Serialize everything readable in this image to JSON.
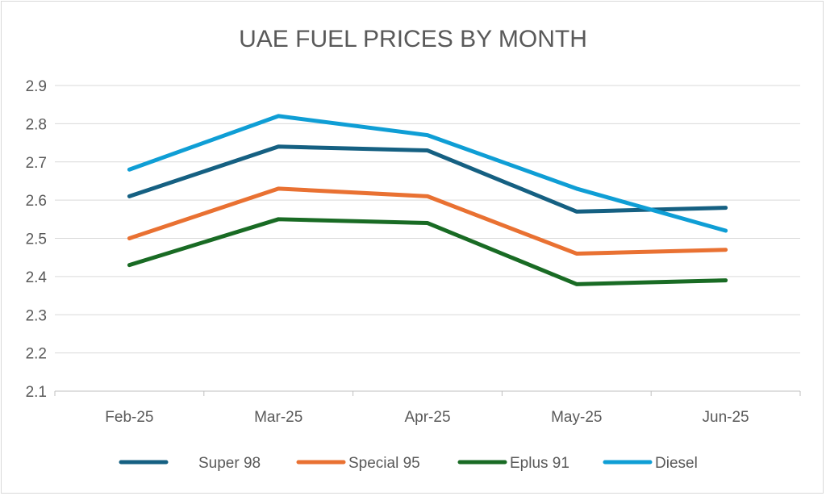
{
  "chart_data": {
    "type": "line",
    "title": "UAE FUEL PRICES BY MONTH",
    "xlabel": "",
    "ylabel": "",
    "categories": [
      "Feb-25",
      "Mar-25",
      "Apr-25",
      "May-25",
      "Jun-25"
    ],
    "ylim": [
      2.1,
      2.9
    ],
    "yticks": [
      "2.1",
      "2.2",
      "2.3",
      "2.4",
      "2.5",
      "2.6",
      "2.7",
      "2.8",
      "2.9"
    ],
    "grid": true,
    "legend": "bottom",
    "series": [
      {
        "name": "Super 98",
        "color": "#156082",
        "values": [
          2.61,
          2.74,
          2.73,
          2.57,
          2.58
        ]
      },
      {
        "name": "Special 95",
        "color": "#E97132",
        "values": [
          2.5,
          2.63,
          2.61,
          2.46,
          2.47
        ]
      },
      {
        "name": "Eplus 91",
        "color": "#196B24",
        "values": [
          2.43,
          2.55,
          2.54,
          2.38,
          2.39
        ]
      },
      {
        "name": "Diesel",
        "color": "#0F9ED5",
        "values": [
          2.68,
          2.82,
          2.77,
          2.63,
          2.52
        ]
      }
    ]
  }
}
